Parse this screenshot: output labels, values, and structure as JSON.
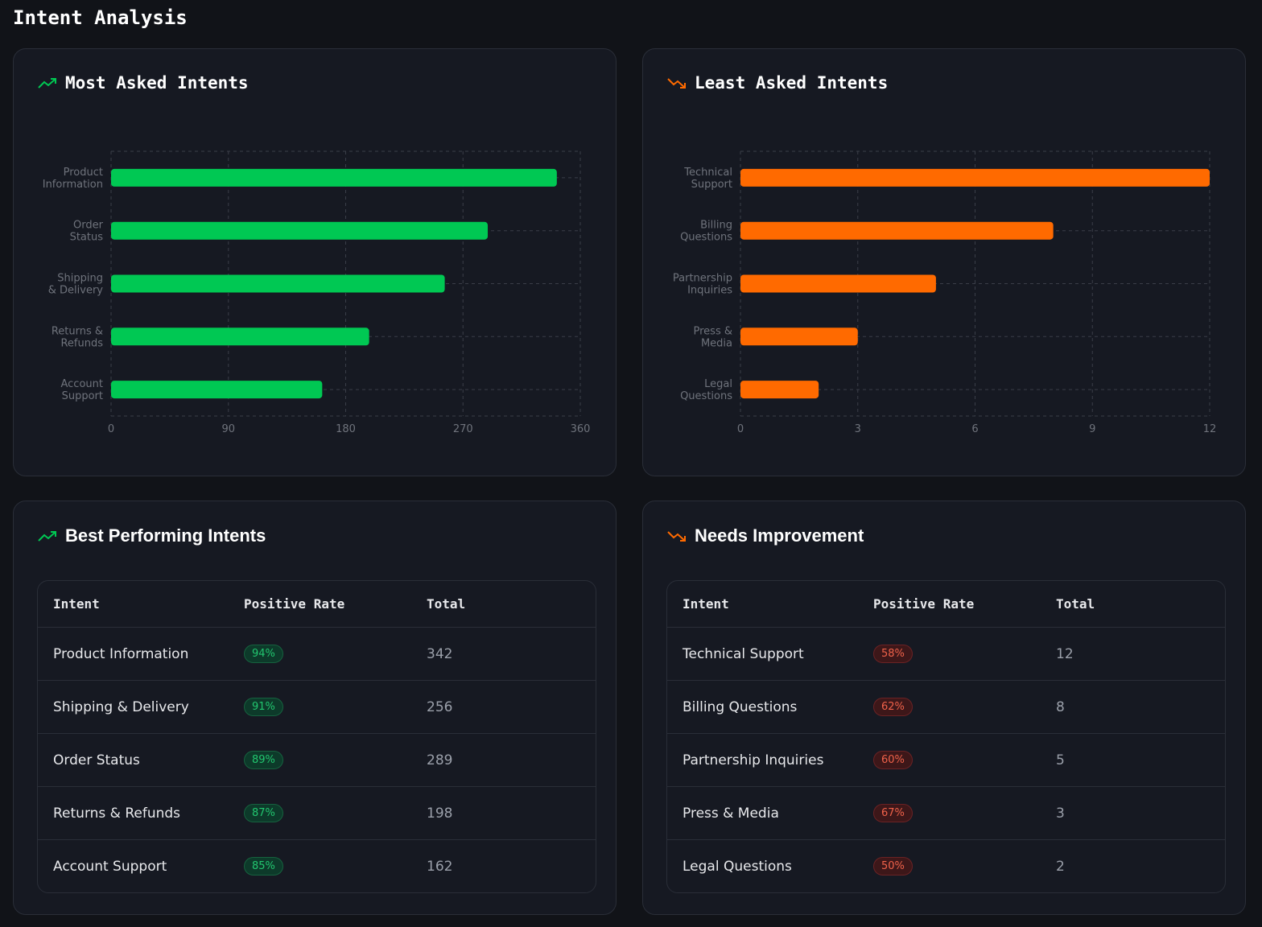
{
  "page_title": "Intent Analysis",
  "colors": {
    "positive": "#00c853",
    "negative": "#ff6a00",
    "background": "#111318",
    "card": "#161922"
  },
  "charts": {
    "most": {
      "title": "Most Asked Intents",
      "icon": "trending-up-icon"
    },
    "least": {
      "title": "Least Asked Intents",
      "icon": "trending-down-icon"
    }
  },
  "chart_data": [
    {
      "type": "bar",
      "orientation": "horizontal",
      "title": "Most Asked Intents",
      "categories": [
        "Product\nInformation",
        "Order\nStatus",
        "Shipping\n& Delivery",
        "Returns &\nRefunds",
        "Account\nSupport"
      ],
      "values": [
        342,
        289,
        256,
        198,
        162
      ],
      "xlim": [
        0,
        360
      ],
      "xticks": [
        0,
        90,
        180,
        270,
        360
      ],
      "grid": true,
      "color": "#00c853"
    },
    {
      "type": "bar",
      "orientation": "horizontal",
      "title": "Least Asked Intents",
      "categories": [
        "Technical\nSupport",
        "Billing\nQuestions",
        "Partnership\nInquiries",
        "Press &\nMedia",
        "Legal\nQuestions"
      ],
      "values": [
        12,
        8,
        5,
        3,
        2
      ],
      "xlim": [
        0,
        12
      ],
      "xticks": [
        0,
        3,
        6,
        9,
        12
      ],
      "grid": true,
      "color": "#ff6a00"
    }
  ],
  "best": {
    "title": "Best Performing Intents",
    "headers": [
      "Intent",
      "Positive Rate",
      "Total"
    ],
    "rows": [
      [
        "Product Information",
        "94%",
        "342"
      ],
      [
        "Shipping & Delivery",
        "91%",
        "256"
      ],
      [
        "Order Status",
        "89%",
        "289"
      ],
      [
        "Returns & Refunds",
        "87%",
        "198"
      ],
      [
        "Account Support",
        "85%",
        "162"
      ]
    ]
  },
  "needs": {
    "title": "Needs Improvement",
    "headers": [
      "Intent",
      "Positive Rate",
      "Total"
    ],
    "rows": [
      [
        "Technical Support",
        "58%",
        "12"
      ],
      [
        "Billing Questions",
        "62%",
        "8"
      ],
      [
        "Partnership Inquiries",
        "60%",
        "5"
      ],
      [
        "Press & Media",
        "67%",
        "3"
      ],
      [
        "Legal Questions",
        "50%",
        "2"
      ]
    ]
  }
}
